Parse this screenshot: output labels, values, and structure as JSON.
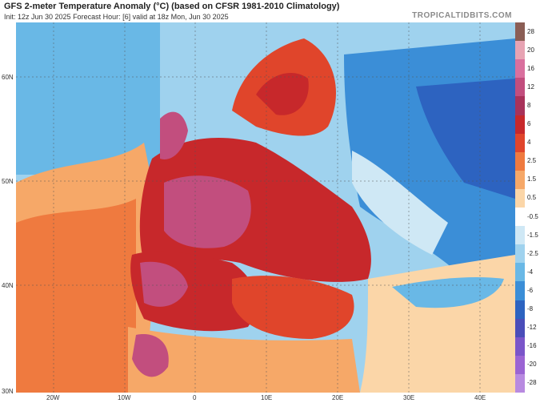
{
  "header": {
    "title": "GFS 2-meter Temperature Anomaly (°C) (based on CFSR 1981-2010 Climatology)",
    "subtitle": "Init: 12z Jun 30 2025   Forecast Hour: [6]   valid at 18z Mon, Jun 30 2025",
    "brand": "TROPICALTIDBITS.COM"
  },
  "axes": {
    "lat_labels": [
      "60N",
      "50N",
      "40N",
      "30N"
    ],
    "lon_labels": [
      "20W",
      "10W",
      "0",
      "10E",
      "20E",
      "30E",
      "40E"
    ]
  },
  "colorbar": {
    "labels": [
      "28",
      "20",
      "16",
      "12",
      "8",
      "6",
      "4",
      "2.5",
      "1.5",
      "0.5",
      "-0.5",
      "-1.5",
      "-2.5",
      "-4",
      "-6",
      "-8",
      "-12",
      "-16",
      "-20",
      "-28"
    ],
    "colors": [
      "#8b5e55",
      "#e7a3b3",
      "#d9709e",
      "#c24e7e",
      "#a8325a",
      "#c7282b",
      "#e0452b",
      "#ef7a3f",
      "#f6a868",
      "#fbd6a8",
      "#ffffff",
      "#cfe8f5",
      "#9fd2ee",
      "#69b8e6",
      "#3b8ed7",
      "#2d63c0",
      "#4a4db9",
      "#7a55c9",
      "#9b64d3",
      "#b88ae0"
    ]
  }
}
